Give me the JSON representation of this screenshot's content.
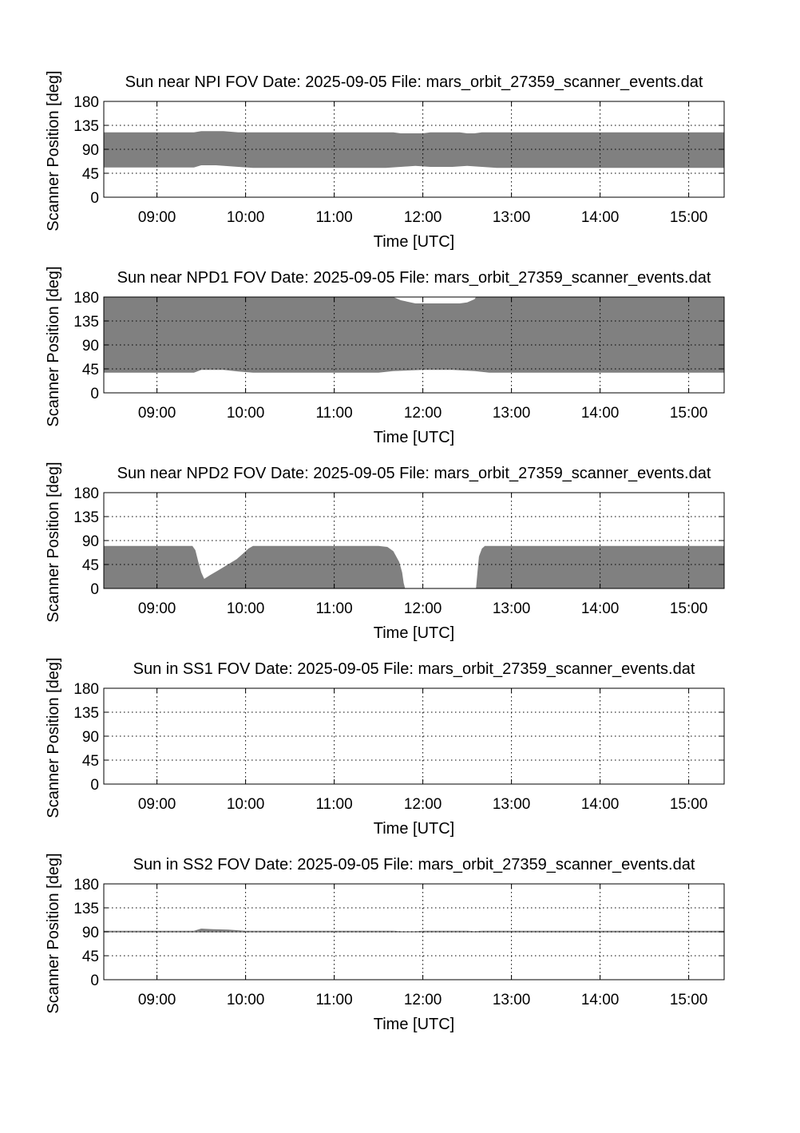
{
  "chart_data": [
    {
      "type": "area",
      "title": "Sun near NPI FOV   Date: 2025-09-05   File: mars_orbit_27359_scanner_events.dat",
      "xlabel": "Time [UTC]",
      "ylabel": "Scanner Position [deg]",
      "xlim": [
        "08:24",
        "15:24"
      ],
      "ylim": [
        0,
        180
      ],
      "xticks": [
        "09:00",
        "10:00",
        "11:00",
        "12:00",
        "13:00",
        "14:00",
        "15:00"
      ],
      "yticks": [
        "0",
        "45",
        "90",
        "135",
        "180"
      ],
      "grid": true,
      "fill_color": "#808080",
      "bands": [
        {
          "lower": [
            [
              "08:24",
              56
            ],
            [
              "09:25",
              56
            ],
            [
              "09:30",
              60
            ],
            [
              "09:40",
              60
            ],
            [
              "09:55",
              57
            ],
            [
              "10:05",
              55
            ],
            [
              "11:35",
              55
            ],
            [
              "11:45",
              57
            ],
            [
              "11:55",
              59
            ],
            [
              "12:05",
              57
            ],
            [
              "12:20",
              57
            ],
            [
              "12:30",
              59
            ],
            [
              "12:40",
              57
            ],
            [
              "12:50",
              55
            ],
            [
              "15:24",
              55
            ]
          ],
          "upper": [
            [
              "08:24",
              122
            ],
            [
              "09:25",
              122
            ],
            [
              "09:30",
              124
            ],
            [
              "09:45",
              124
            ],
            [
              "09:55",
              122
            ],
            [
              "11:40",
              122
            ],
            [
              "11:45",
              120
            ],
            [
              "12:00",
              120
            ],
            [
              "12:05",
              122
            ],
            [
              "12:25",
              122
            ],
            [
              "12:30",
              120
            ],
            [
              "12:35",
              120
            ],
            [
              "12:40",
              122
            ],
            [
              "15:24",
              122
            ]
          ]
        }
      ]
    },
    {
      "type": "area",
      "title": "Sun near NPD1 FOV   Date: 2025-09-05   File: mars_orbit_27359_scanner_events.dat",
      "xlabel": "Time [UTC]",
      "ylabel": "Scanner Position [deg]",
      "xlim": [
        "08:24",
        "15:24"
      ],
      "ylim": [
        0,
        180
      ],
      "xticks": [
        "09:00",
        "10:00",
        "11:00",
        "12:00",
        "13:00",
        "14:00",
        "15:00"
      ],
      "yticks": [
        "0",
        "45",
        "90",
        "135",
        "180"
      ],
      "grid": true,
      "fill_color": "#808080",
      "bands": [
        {
          "lower": [
            [
              "08:24",
              38
            ],
            [
              "09:25",
              38
            ],
            [
              "09:30",
              43
            ],
            [
              "09:45",
              43
            ],
            [
              "09:55",
              40
            ],
            [
              "10:05",
              38
            ],
            [
              "11:30",
              38
            ],
            [
              "11:40",
              41
            ],
            [
              "11:50",
              42
            ],
            [
              "12:00",
              43
            ],
            [
              "12:20",
              43
            ],
            [
              "12:35",
              41
            ],
            [
              "12:45",
              38
            ],
            [
              "15:24",
              38
            ]
          ],
          "upper": [
            [
              "08:24",
              180
            ],
            [
              "11:40",
              180
            ],
            [
              "11:45",
              174
            ],
            [
              "11:55",
              168
            ],
            [
              "12:15",
              168
            ],
            [
              "12:25",
              168
            ],
            [
              "12:30",
              170
            ],
            [
              "12:35",
              176
            ],
            [
              "12:36",
              180
            ],
            [
              "15:24",
              180
            ]
          ]
        }
      ]
    },
    {
      "type": "area",
      "title": "Sun near NPD2 FOV   Date: 2025-09-05   File: mars_orbit_27359_scanner_events.dat",
      "xlabel": "Time [UTC]",
      "ylabel": "Scanner Position [deg]",
      "xlim": [
        "08:24",
        "15:24"
      ],
      "ylim": [
        0,
        180
      ],
      "xticks": [
        "09:00",
        "10:00",
        "11:00",
        "12:00",
        "13:00",
        "14:00",
        "15:00"
      ],
      "yticks": [
        "0",
        "45",
        "90",
        "135",
        "180"
      ],
      "grid": true,
      "fill_color": "#808080",
      "bands": [
        {
          "lower": [
            [
              "08:24",
              0
            ],
            [
              "11:48",
              0
            ]
          ],
          "upper": [
            [
              "08:24",
              80
            ],
            [
              "09:24",
              80
            ],
            [
              "09:26",
              72
            ],
            [
              "09:28",
              50
            ],
            [
              "09:30",
              30
            ],
            [
              "09:32",
              18
            ],
            [
              "09:36",
              25
            ],
            [
              "09:42",
              35
            ],
            [
              "09:48",
              45
            ],
            [
              "09:54",
              55
            ],
            [
              "09:58",
              65
            ],
            [
              "10:02",
              75
            ],
            [
              "10:05",
              80
            ],
            [
              "11:30",
              80
            ],
            [
              "11:36",
              78
            ],
            [
              "11:40",
              70
            ],
            [
              "11:44",
              50
            ],
            [
              "11:46",
              30
            ],
            [
              "11:47",
              10
            ],
            [
              "11:48",
              0
            ]
          ]
        },
        {
          "lower": [
            [
              "12:36",
              0
            ],
            [
              "15:24",
              0
            ]
          ],
          "upper": [
            [
              "12:36",
              0
            ],
            [
              "12:37",
              30
            ],
            [
              "12:38",
              60
            ],
            [
              "12:40",
              75
            ],
            [
              "12:42",
              80
            ],
            [
              "15:24",
              80
            ]
          ]
        }
      ]
    },
    {
      "type": "area",
      "title": "Sun in SS1 FOV   Date: 2025-09-05   File: mars_orbit_27359_scanner_events.dat",
      "xlabel": "Time [UTC]",
      "ylabel": "Scanner Position [deg]",
      "xlim": [
        "08:24",
        "15:24"
      ],
      "ylim": [
        0,
        180
      ],
      "xticks": [
        "09:00",
        "10:00",
        "11:00",
        "12:00",
        "13:00",
        "14:00",
        "15:00"
      ],
      "yticks": [
        "0",
        "45",
        "90",
        "135",
        "180"
      ],
      "grid": true,
      "fill_color": "#808080",
      "bands": []
    },
    {
      "type": "area",
      "title": "Sun in SS2 FOV   Date: 2025-09-05   File: mars_orbit_27359_scanner_events.dat",
      "xlabel": "Time [UTC]",
      "ylabel": "Scanner Position [deg]",
      "xlim": [
        "08:24",
        "15:24"
      ],
      "ylim": [
        0,
        180
      ],
      "xticks": [
        "09:00",
        "10:00",
        "11:00",
        "12:00",
        "13:00",
        "14:00",
        "15:00"
      ],
      "yticks": [
        "0",
        "45",
        "90",
        "135",
        "180"
      ],
      "grid": true,
      "fill_color": "#808080",
      "bands": [
        {
          "lower": [
            [
              "08:24",
              89
            ],
            [
              "15:24",
              89
            ]
          ],
          "upper": [
            [
              "08:24",
              92
            ],
            [
              "09:25",
              92
            ],
            [
              "09:30",
              96
            ],
            [
              "09:38",
              95
            ],
            [
              "09:48",
              94
            ],
            [
              "10:00",
              92
            ],
            [
              "11:40",
              92
            ],
            [
              "11:45",
              91
            ],
            [
              "11:55",
              91
            ],
            [
              "12:00",
              92
            ],
            [
              "12:30",
              92
            ],
            [
              "12:35",
              91
            ],
            [
              "12:40",
              92
            ],
            [
              "15:24",
              92
            ]
          ]
        }
      ]
    }
  ]
}
